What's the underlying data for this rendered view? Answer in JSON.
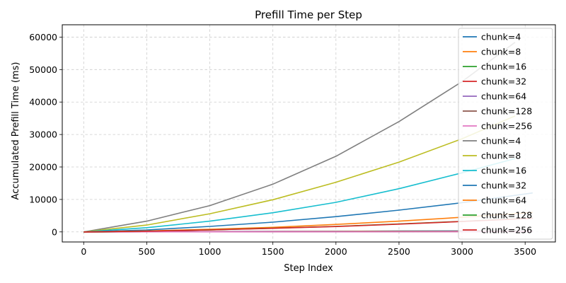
{
  "chart_data": {
    "type": "line",
    "title": "Prefill Time per Step",
    "xlabel": "Step Index",
    "ylabel": "Accumulated Prefill Time (ms)",
    "xlim": [
      -170,
      3740
    ],
    "ylim": [
      -3100,
      63800
    ],
    "xticks": [
      0,
      500,
      1000,
      1500,
      2000,
      2500,
      3000,
      3500
    ],
    "yticks": [
      0,
      10000,
      20000,
      30000,
      40000,
      50000,
      60000
    ],
    "grid": true,
    "legend_position": "upper-right",
    "series": [
      {
        "name": "chunk=4",
        "color": "#1f77b4",
        "x": [
          0,
          500,
          1000,
          1500,
          2000,
          2500,
          3000,
          3560
        ],
        "y": [
          0,
          50,
          100,
          150,
          200,
          250,
          300,
          360
        ]
      },
      {
        "name": "chunk=8",
        "color": "#ff7f0e",
        "x": [
          0,
          500,
          1000,
          1500,
          2000,
          2500,
          3000,
          3560
        ],
        "y": [
          0,
          40,
          80,
          120,
          160,
          200,
          240,
          285
        ]
      },
      {
        "name": "chunk=16",
        "color": "#2ca02c",
        "x": [
          0,
          500,
          1000,
          1500,
          2000,
          2500,
          3000,
          3560
        ],
        "y": [
          0,
          30,
          60,
          90,
          120,
          150,
          180,
          215
        ]
      },
      {
        "name": "chunk=32",
        "color": "#d62728",
        "x": [
          0,
          500,
          1000,
          1500,
          2000,
          2500,
          3000,
          3560
        ],
        "y": [
          0,
          25,
          50,
          75,
          100,
          125,
          150,
          180
        ]
      },
      {
        "name": "chunk=64",
        "color": "#9467bd",
        "x": [
          0,
          500,
          1000,
          1500,
          2000,
          2500,
          3000,
          3560
        ],
        "y": [
          0,
          20,
          40,
          60,
          80,
          100,
          120,
          145
        ]
      },
      {
        "name": "chunk=128",
        "color": "#8c564b",
        "x": [
          0,
          500,
          1000,
          1500,
          2000,
          2500,
          3000,
          3560
        ],
        "y": [
          0,
          15,
          30,
          45,
          60,
          75,
          90,
          105
        ]
      },
      {
        "name": "chunk=256",
        "color": "#e377c2",
        "x": [
          0,
          500,
          1000,
          1500,
          2000,
          2500,
          3000,
          3560
        ],
        "y": [
          0,
          10,
          20,
          30,
          40,
          50,
          60,
          70
        ]
      },
      {
        "name": "chunk=4",
        "color": "#7f7f7f",
        "x": [
          0,
          500,
          1000,
          1500,
          2000,
          2500,
          3000,
          3420
        ],
        "y": [
          0,
          3300,
          8100,
          14700,
          23300,
          34000,
          46300,
          58400
        ]
      },
      {
        "name": "chunk=8",
        "color": "#bcbd22",
        "x": [
          0,
          500,
          1000,
          1500,
          2000,
          2500,
          3000,
          3420
        ],
        "y": [
          0,
          2100,
          5600,
          9900,
          15300,
          21500,
          28700,
          35700
        ]
      },
      {
        "name": "chunk=16",
        "color": "#17becf",
        "x": [
          0,
          500,
          1000,
          1500,
          2000,
          2500,
          3000,
          3420
        ],
        "y": [
          0,
          1300,
          3300,
          5900,
          9100,
          13300,
          18200,
          22600
        ]
      },
      {
        "name": "chunk=32",
        "color": "#1f77b4",
        "x": [
          0,
          500,
          1000,
          1500,
          2000,
          2500,
          3000,
          3560
        ],
        "y": [
          0,
          600,
          1700,
          3000,
          4700,
          6700,
          9000,
          12000
        ]
      },
      {
        "name": "chunk=64",
        "color": "#ff7f0e",
        "x": [
          0,
          500,
          1000,
          1500,
          2000,
          2500,
          3000,
          3560
        ],
        "y": [
          0,
          300,
          800,
          1400,
          2300,
          3300,
          4500,
          6000
        ]
      },
      {
        "name": "chunk=128",
        "color": "#2ca02c",
        "x": [
          0,
          500,
          1000,
          1500,
          2000,
          2500,
          3000,
          3560
        ],
        "y": [
          0,
          230,
          620,
          1150,
          1700,
          2450,
          3250,
          4300
        ]
      },
      {
        "name": "chunk=256",
        "color": "#d62728",
        "x": [
          0,
          500,
          1000,
          1500,
          2000,
          2500,
          3000,
          3560
        ],
        "y": [
          0,
          220,
          600,
          1100,
          1650,
          2400,
          3200,
          4200
        ]
      }
    ]
  }
}
